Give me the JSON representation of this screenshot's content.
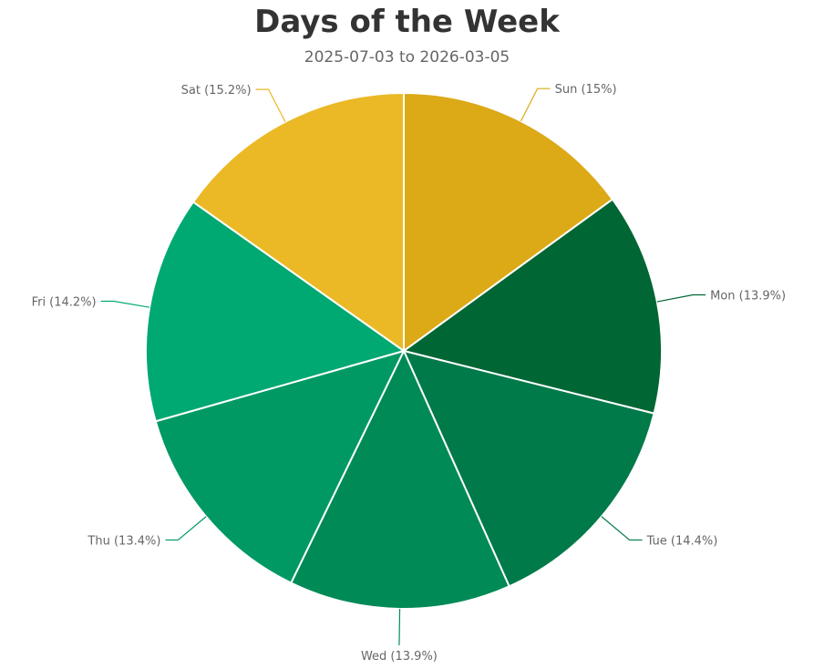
{
  "chart_data": {
    "type": "pie",
    "title": "Days of the Week",
    "subtitle": "2025-07-03 to 2026-03-05",
    "slices": [
      {
        "label": "Sun (15%)",
        "name": "Sun",
        "value": 15.0,
        "color": "#DCA917"
      },
      {
        "label": "Mon (13.9%)",
        "name": "Mon",
        "value": 13.9,
        "color": "#006633"
      },
      {
        "label": "Tue (14.4%)",
        "name": "Tue",
        "value": 14.4,
        "color": "#007A48"
      },
      {
        "label": "Wed (13.9%)",
        "name": "Wed",
        "value": 13.9,
        "color": "#008A56"
      },
      {
        "label": "Thu (13.4%)",
        "name": "Thu",
        "value": 13.4,
        "color": "#009963"
      },
      {
        "label": "Fri (14.2%)",
        "name": "Fri",
        "value": 14.2,
        "color": "#00A872"
      },
      {
        "label": "Sat (15.2%)",
        "name": "Sat",
        "value": 15.2,
        "color": "#EBB925"
      }
    ]
  }
}
